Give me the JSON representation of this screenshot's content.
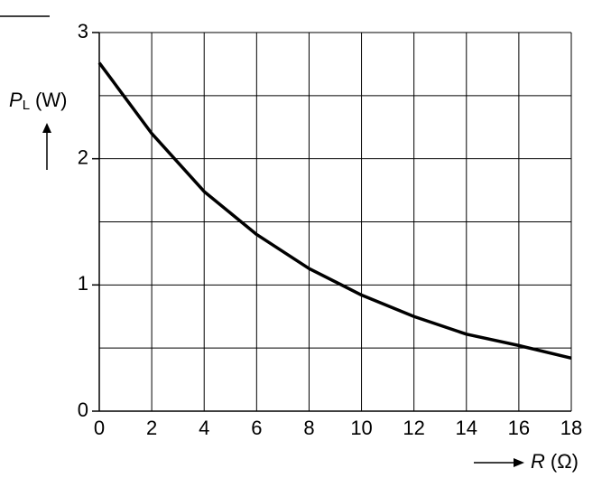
{
  "chart_data": {
    "type": "line",
    "x": [
      0,
      2,
      4,
      6,
      8,
      10,
      12,
      14,
      16,
      18
    ],
    "series": [
      {
        "color": "#000000",
        "values": [
          2.76,
          2.2,
          1.74,
          1.4,
          1.13,
          0.92,
          0.75,
          0.61,
          0.52,
          0.42
        ]
      }
    ],
    "xlim": [
      0,
      18
    ],
    "xticks": [
      0,
      2,
      4,
      6,
      8,
      10,
      12,
      14,
      16,
      18
    ],
    "ylim": [
      0,
      3
    ],
    "yticks": [
      0,
      1,
      2,
      3
    ],
    "yminor": [
      0.5,
      1.5,
      2.5
    ],
    "grid": true,
    "ylabel": {
      "symbol": "P",
      "subscript": "L",
      "unit": "(W)"
    },
    "xlabel": {
      "symbol": "R",
      "unit": "(Ω)"
    }
  }
}
